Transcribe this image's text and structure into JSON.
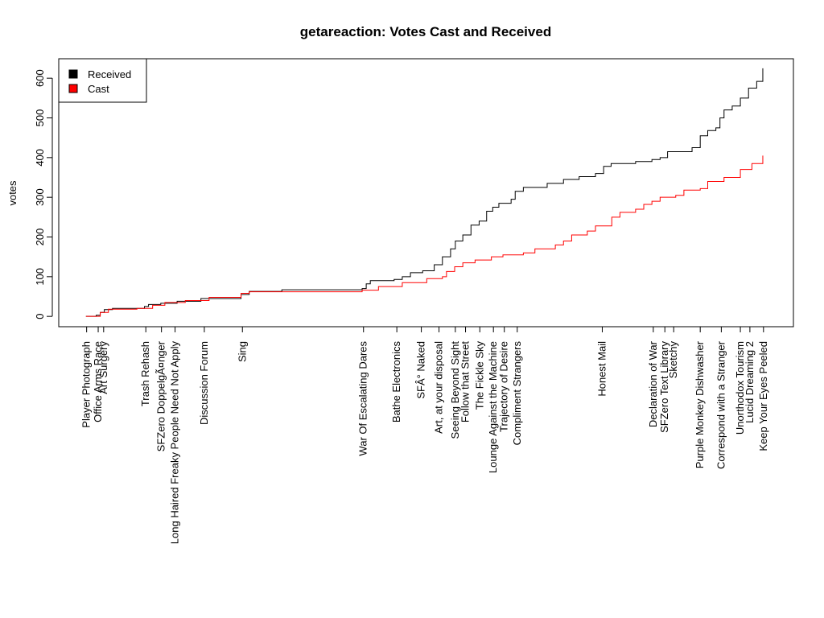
{
  "chart_data": {
    "type": "step",
    "title": "getareaction: Votes Cast and Received",
    "y_label": "votes",
    "xlim": [
      -4,
      104
    ],
    "ylim": [
      -26,
      649
    ],
    "yticks": [
      0,
      100,
      200,
      300,
      400,
      500,
      600
    ],
    "xticks": [
      {
        "value": 0.1,
        "label": "Player Photograph"
      },
      {
        "value": 1.8,
        "label": "Office Arms Race"
      },
      {
        "value": 2.6,
        "label": "Art Surgery"
      },
      {
        "value": 8.8,
        "label": "Trash Rehash"
      },
      {
        "value": 11.1,
        "label": "SFZero DoppelgÃ¤nger"
      },
      {
        "value": 13.1,
        "label": "Long Haired Freaky People Need Not Apply"
      },
      {
        "value": 17.4,
        "label": "Discussion Forum"
      },
      {
        "value": 23.0,
        "label": "Sing"
      },
      {
        "value": 40.8,
        "label": "War Of Escalating Dares"
      },
      {
        "value": 45.7,
        "label": "Bathe Electronics"
      },
      {
        "value": 49.3,
        "label": "SFÂ° Naked"
      },
      {
        "value": 51.9,
        "label": "Art, at your disposal"
      },
      {
        "value": 54.3,
        "label": "Seeing Beyond Sight"
      },
      {
        "value": 55.8,
        "label": "Follow that Street"
      },
      {
        "value": 57.9,
        "label": "The Fickle Sky"
      },
      {
        "value": 59.9,
        "label": "Lounge Against the Machine"
      },
      {
        "value": 61.5,
        "label": "Trajectory of Desire"
      },
      {
        "value": 63.4,
        "label": "Compliment Strangers"
      },
      {
        "value": 75.9,
        "label": "Honest Mail"
      },
      {
        "value": 83.4,
        "label": "Declaration of War"
      },
      {
        "value": 85.1,
        "label": "SFZero Text Library"
      },
      {
        "value": 86.4,
        "label": "Sketchy"
      },
      {
        "value": 90.3,
        "label": "Purple Monkey Dishwasher"
      },
      {
        "value": 93.4,
        "label": "Correspond with a Stranger"
      },
      {
        "value": 96.2,
        "label": "Unorthodox Tourism"
      },
      {
        "value": 97.6,
        "label": "Lucid Dreaming 2"
      },
      {
        "value": 99.6,
        "label": "Keep Your Eyes Peeled"
      }
    ],
    "legend": "top-left",
    "series": [
      {
        "name": "Received",
        "color": "#000000",
        "x": [
          0,
          1.5,
          2.1,
          2.7,
          3.9,
          7.5,
          8.6,
          9.2,
          11.0,
          13.4,
          16.9,
          22.8,
          24.0,
          28.8,
          34.7,
          40.6,
          41.2,
          41.8,
          45.3,
          46.5,
          47.7,
          49.5,
          51.2,
          52.4,
          53.6,
          54.3,
          55.4,
          56.6,
          57.8,
          58.9,
          59.8,
          60.7,
          62.5,
          63.1,
          64.3,
          67.8,
          70.2,
          72.5,
          74.9,
          76.1,
          77.2,
          80.8,
          83.2,
          84.4,
          85.5,
          89.1,
          90.3,
          91.4,
          92.6,
          93.2,
          93.8,
          95.0,
          96.2,
          97.4,
          98.6,
          99.5
        ],
        "values": [
          0,
          3,
          10,
          17,
          20,
          20,
          25,
          30,
          33,
          38,
          45,
          55,
          63,
          67,
          67,
          70,
          82,
          90,
          93,
          100,
          110,
          115,
          130,
          150,
          170,
          190,
          205,
          230,
          240,
          265,
          275,
          285,
          295,
          315,
          325,
          335,
          345,
          352,
          360,
          378,
          385,
          390,
          395,
          400,
          415,
          425,
          455,
          468,
          475,
          500,
          520,
          530,
          550,
          575,
          592,
          625
        ]
      },
      {
        "name": "Cast",
        "color": "#ff0000",
        "x": [
          0,
          2.1,
          3.3,
          7.5,
          9.8,
          11.6,
          14.6,
          18.1,
          22.8,
          24.0,
          34.7,
          40.6,
          43.0,
          46.5,
          50.1,
          52.4,
          53.0,
          54.2,
          55.4,
          57.2,
          59.6,
          61.3,
          64.3,
          66.0,
          69.0,
          70.2,
          71.4,
          73.7,
          74.9,
          77.3,
          78.5,
          80.8,
          82.0,
          83.2,
          84.4,
          86.7,
          87.9,
          90.3,
          91.4,
          93.8,
          96.2,
          97.9,
          99.5
        ],
        "values": [
          0,
          10,
          18,
          20,
          28,
          35,
          40,
          48,
          58,
          62,
          62,
          66,
          75,
          85,
          95,
          100,
          113,
          125,
          135,
          142,
          150,
          155,
          160,
          170,
          180,
          190,
          205,
          215,
          228,
          250,
          262,
          270,
          282,
          290,
          300,
          305,
          318,
          322,
          340,
          350,
          370,
          385,
          405
        ]
      }
    ]
  }
}
